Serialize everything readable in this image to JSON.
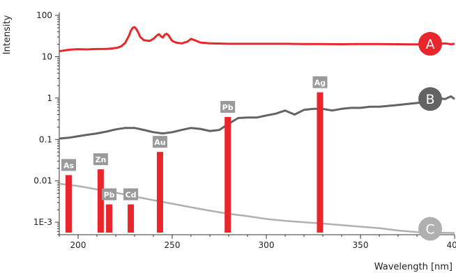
{
  "chart_data": {
    "type": "line",
    "xlabel": "Wavelength [nm]",
    "ylabel": "Intensity",
    "xscale": "linear",
    "yscale": "log",
    "xlim": [
      190,
      400
    ],
    "ylim": [
      0.0005,
      100
    ],
    "xticks": [
      200,
      250,
      300,
      350,
      400
    ],
    "yticks": [
      {
        "value": 100,
        "label": "100"
      },
      {
        "value": 10,
        "label": "10"
      },
      {
        "value": 1,
        "label": "1"
      },
      {
        "value": 0.1,
        "label": "0.1"
      },
      {
        "value": 0.01,
        "label": "0.01"
      },
      {
        "value": 0.001,
        "label": "1E-3"
      }
    ],
    "grid": false,
    "colors": {
      "red": "#e8262b",
      "dark_gray": "#636363",
      "light_gray": "#b0b0b0",
      "label_gray": "#9a9a9a"
    },
    "series": [
      {
        "name": "A",
        "color": "#e8262b",
        "x": [
          190,
          193,
          196,
          200,
          205,
          210,
          215,
          218,
          221,
          223,
          225,
          227,
          228,
          229,
          230,
          231,
          232,
          233,
          235,
          238,
          240,
          242,
          243,
          244,
          245,
          246,
          247,
          248,
          249,
          250,
          252,
          255,
          258,
          260,
          262,
          265,
          270,
          280,
          290,
          300,
          310,
          320,
          330,
          340,
          350,
          360,
          370,
          380,
          390,
          395,
          398,
          400
        ],
        "y": [
          13.5,
          14.3,
          14.8,
          15.2,
          15.0,
          15.3,
          15.4,
          15.8,
          16.5,
          18.0,
          21.5,
          32.0,
          42.0,
          50.0,
          52.0,
          46.0,
          38.0,
          30.0,
          25.0,
          24.0,
          27.0,
          33.0,
          35.0,
          31.0,
          29.0,
          34.0,
          36.0,
          33.0,
          28.0,
          24.0,
          22.0,
          21.0,
          23.0,
          27.0,
          25.0,
          22.0,
          21.0,
          20.5,
          20.5,
          20.5,
          20.5,
          20.3,
          20.3,
          20.0,
          20.3,
          20.2,
          20.0,
          19.8,
          20.0,
          21.0,
          20.0,
          20.5
        ]
      },
      {
        "name": "B",
        "color": "#636363",
        "x": [
          190,
          195,
          200,
          205,
          210,
          215,
          220,
          225,
          230,
          235,
          240,
          245,
          250,
          255,
          260,
          265,
          270,
          275,
          280,
          285,
          290,
          295,
          300,
          305,
          310,
          315,
          320,
          325,
          330,
          335,
          340,
          345,
          350,
          355,
          360,
          365,
          370,
          375,
          380,
          385,
          390,
          395,
          398,
          400
        ],
        "y": [
          0.105,
          0.11,
          0.12,
          0.13,
          0.14,
          0.155,
          0.175,
          0.19,
          0.19,
          0.17,
          0.15,
          0.14,
          0.15,
          0.17,
          0.19,
          0.18,
          0.16,
          0.17,
          0.24,
          0.33,
          0.34,
          0.34,
          0.38,
          0.42,
          0.5,
          0.4,
          0.52,
          0.55,
          0.55,
          0.5,
          0.55,
          0.58,
          0.58,
          0.62,
          0.62,
          0.65,
          0.68,
          0.72,
          0.76,
          0.82,
          1.0,
          0.95,
          1.1,
          0.95
        ]
      },
      {
        "name": "C",
        "color": "#b0b0b0",
        "x": [
          190,
          200,
          210,
          220,
          230,
          240,
          250,
          260,
          270,
          280,
          290,
          300,
          310,
          320,
          330,
          340,
          350,
          360,
          370,
          380,
          390,
          400
        ],
        "y": [
          0.0085,
          0.0075,
          0.0062,
          0.0052,
          0.0042,
          0.0034,
          0.0028,
          0.0023,
          0.0019,
          0.0016,
          0.0014,
          0.0012,
          0.00108,
          0.001,
          0.00093,
          0.00085,
          0.00078,
          0.00072,
          0.00063,
          0.00058,
          0.00056,
          0.00055
        ]
      }
    ],
    "bars": [
      {
        "element": "As",
        "x": 195.0,
        "value": 0.0138
      },
      {
        "element": "Zn",
        "x": 212.0,
        "value": 0.019
      },
      {
        "element": "Pb",
        "x": 216.5,
        "value": 0.0027
      },
      {
        "element": "Cd",
        "x": 228.0,
        "value": 0.0027
      },
      {
        "element": "Au",
        "x": 243.5,
        "value": 0.05
      },
      {
        "element": "Pb",
        "x": 279.5,
        "value": 0.35
      },
      {
        "element": "Ag",
        "x": 328.5,
        "value": 1.38
      }
    ]
  }
}
